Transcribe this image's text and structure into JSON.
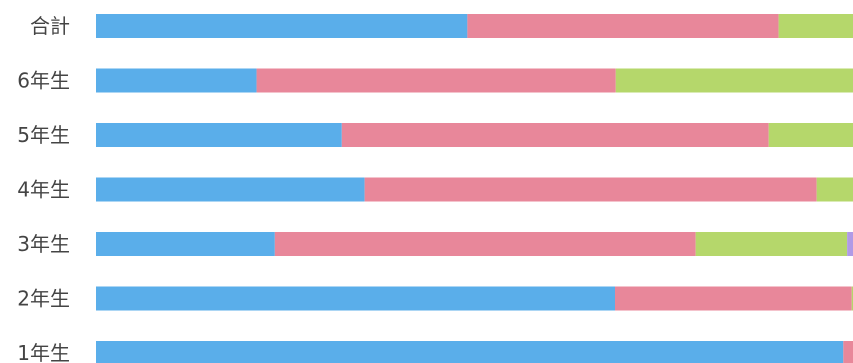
{
  "chart_data": {
    "type": "bar",
    "orientation": "horizontal",
    "stacked": true,
    "title": "",
    "xlabel": "",
    "ylabel": "",
    "categories": [
      "合計",
      "6年生",
      "5年生",
      "4年生",
      "3年生",
      "2年生",
      "1年生"
    ],
    "series": [
      {
        "color": "#5aaeea",
        "values": [
          48.8,
          21.1,
          32.3,
          35.3,
          23.5,
          68.2,
          98.2
        ]
      },
      {
        "color": "#e8879a",
        "values": [
          40.9,
          47.2,
          56.1,
          59.4,
          55.3,
          31.1,
          1.8
        ]
      },
      {
        "color": "#b5d76b",
        "values": [
          10.3,
          31.7,
          11.6,
          5.3,
          19.9,
          2.4,
          0
        ]
      },
      {
        "color": "#b09ae6",
        "values": [
          0,
          0,
          0,
          0,
          3.5,
          0,
          0
        ]
      }
    ],
    "xlim": [
      0,
      100
    ],
    "grid": false,
    "legend": "none"
  }
}
